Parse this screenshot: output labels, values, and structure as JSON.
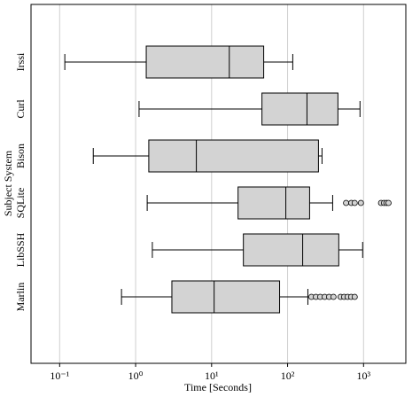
{
  "chart_data": {
    "type": "boxplot",
    "orientation": "horizontal",
    "x_label": "Time [Seconds]",
    "y_label": "Subject System",
    "categories": [
      "Irssi",
      "Curl",
      "Bison",
      "SQLite",
      "LibSSH",
      "Marlin"
    ],
    "boxes": [
      {
        "low": 0.117,
        "q1": 1.38,
        "median": 17.1,
        "q3": 48.5,
        "high": 117,
        "outliers": []
      },
      {
        "low": 1.11,
        "q1": 46,
        "median": 180,
        "q3": 460,
        "high": 898,
        "outliers": []
      },
      {
        "low": 0.277,
        "q1": 1.49,
        "median": 6.3,
        "q3": 255,
        "high": 284,
        "outliers": []
      },
      {
        "low": 1.42,
        "q1": 22.3,
        "median": 94.8,
        "q3": 195,
        "high": 392,
        "outliers": [
          589,
          690,
          765,
          923,
          1700,
          1860,
          2000,
          2130
        ]
      },
      {
        "low": 1.66,
        "q1": 26.2,
        "median": 158,
        "q3": 472,
        "high": 973,
        "outliers": []
      },
      {
        "low": 0.652,
        "q1": 3.0,
        "median": 10.8,
        "q3": 78.5,
        "high": 185,
        "outliers": [
          206,
          236,
          269,
          308,
          352,
          402,
          499,
          555,
          617,
          687,
          765
        ]
      }
    ],
    "box_color": "#d3d3d3",
    "xscale": "log",
    "xlim": [
      0.042,
      3600
    ],
    "xticks": [
      {
        "value": 0.1,
        "label": "10⁻¹"
      },
      {
        "value": 1,
        "label": "10⁰"
      },
      {
        "value": 10,
        "label": "10¹"
      },
      {
        "value": 100,
        "label": "10²"
      },
      {
        "value": 1000,
        "label": "10³"
      }
    ],
    "grid": true
  }
}
